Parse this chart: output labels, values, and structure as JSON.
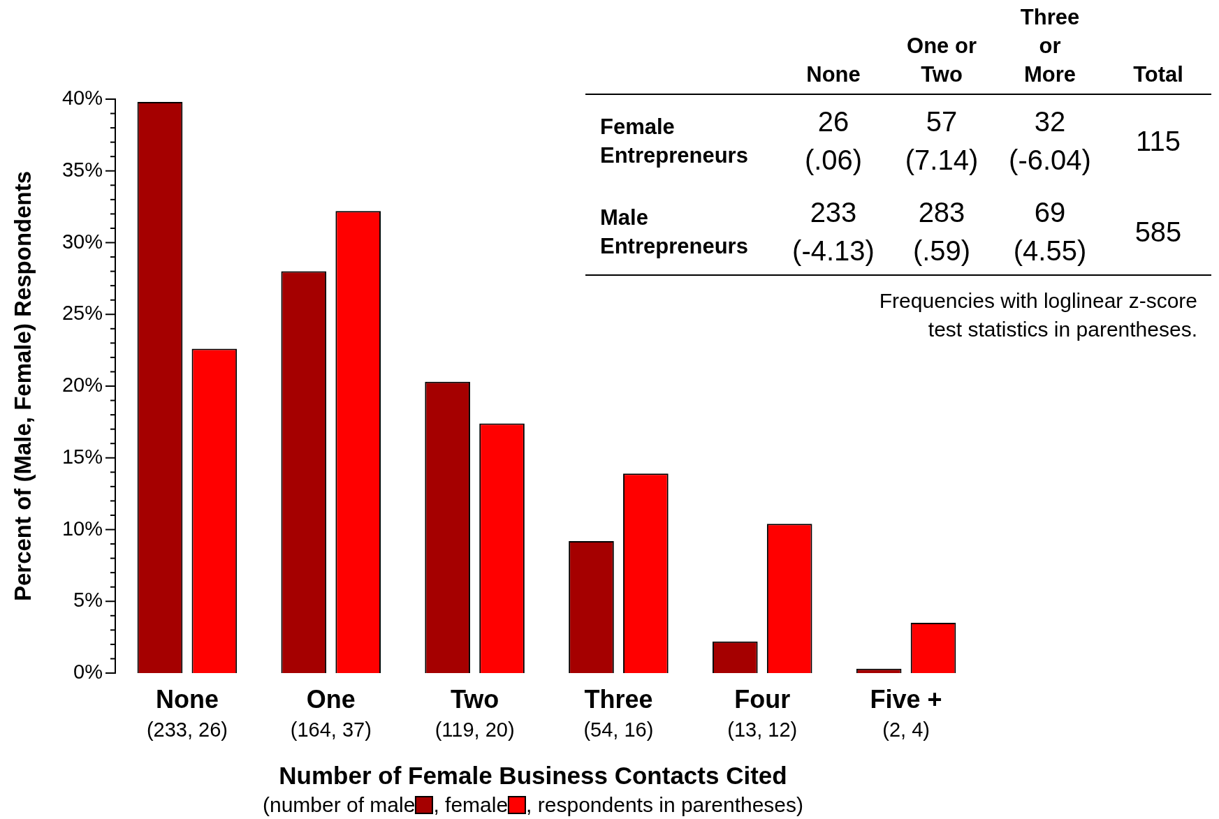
{
  "chart_data": {
    "type": "bar",
    "xlabel": "Number of Female Business Contacts Cited",
    "ylabel": "Percent of (Male, Female) Respondents",
    "categories": [
      "None\n(233, 26)",
      "One\n(164, 37)",
      "Two\n(119, 20)",
      "Three\n(54, 16)",
      "Four\n(13, 12)",
      "Five +\n(2, 4)"
    ],
    "series": [
      {
        "color": "#a50000",
        "values": [
          39.8,
          28.0,
          20.3,
          9.2,
          2.2,
          0.3
        ]
      },
      {
        "color": "#ff0000",
        "values": [
          22.6,
          32.2,
          17.4,
          13.9,
          10.4,
          3.5
        ]
      }
    ],
    "ylim": [
      0,
      40
    ],
    "yticks": [
      {
        "value": 0,
        "label": "0%"
      },
      {
        "value": 1,
        "label": null
      },
      {
        "value": 2,
        "label": null
      },
      {
        "value": 3,
        "label": null
      },
      {
        "value": 4,
        "label": null
      },
      {
        "value": 5,
        "label": "5%"
      },
      {
        "value": 6,
        "label": null
      },
      {
        "value": 7,
        "label": null
      },
      {
        "value": 8,
        "label": null
      },
      {
        "value": 9,
        "label": null
      },
      {
        "value": 10,
        "label": "10%"
      },
      {
        "value": 11,
        "label": null
      },
      {
        "value": 12,
        "label": null
      },
      {
        "value": 13,
        "label": null
      },
      {
        "value": 14,
        "label": null
      },
      {
        "value": 15,
        "label": "15%"
      },
      {
        "value": 16,
        "label": null
      },
      {
        "value": 17,
        "label": null
      },
      {
        "value": 18,
        "label": null
      },
      {
        "value": 19,
        "label": null
      },
      {
        "value": 20,
        "label": "20%"
      },
      {
        "value": 21,
        "label": null
      },
      {
        "value": 22,
        "label": null
      },
      {
        "value": 23,
        "label": null
      },
      {
        "value": 24,
        "label": null
      },
      {
        "value": 25,
        "label": "25%"
      },
      {
        "value": 26,
        "label": null
      },
      {
        "value": 27,
        "label": null
      },
      {
        "value": 28,
        "label": null
      },
      {
        "value": 29,
        "label": null
      },
      {
        "value": 30,
        "label": "30%"
      },
      {
        "value": 31,
        "label": null
      },
      {
        "value": 32,
        "label": null
      },
      {
        "value": 33,
        "label": null
      },
      {
        "value": 34,
        "label": null
      },
      {
        "value": 35,
        "label": "35%"
      },
      {
        "value": 36,
        "label": null
      },
      {
        "value": 37,
        "label": null
      },
      {
        "value": 38,
        "label": null
      },
      {
        "value": 39,
        "label": null
      },
      {
        "value": 40,
        "label": "40%"
      }
    ],
    "grid": false,
    "legend": false,
    "annotations": [
      "None",
      "One or\nTwo",
      "Three\nor\nMore",
      "Total",
      "Female\nEntrepreneurs",
      "26\n(.06)",
      "57\n(7.14)",
      "32\n(-6.04)",
      "115",
      "Male\nEntrepreneurs",
      "233\n(-4.13)",
      "283\n(.59)",
      "69\n(4.55)",
      "585",
      "Frequencies with loglinear z-score\ntest statistics in parentheses.",
      "(number of male",
      ", female",
      ", respondents in parentheses)"
    ]
  }
}
